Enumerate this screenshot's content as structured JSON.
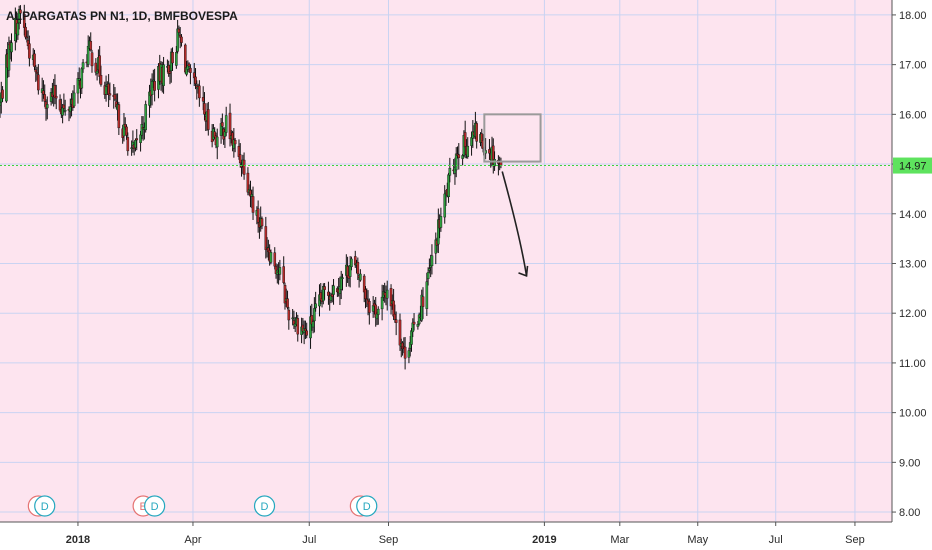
{
  "chart_data": {
    "type": "candlestick",
    "title": "ALPARGATAS PN N1, 1D, BMFBOVESPA",
    "colors": {
      "background": "#fde4ef",
      "up": "#2e9e3e",
      "down": "#b32a2a",
      "wick": "#111111",
      "grid": "#c9d3f2",
      "current_price_line": "#3cd43c",
      "current_price_tag": "#5ee35e",
      "annotation": "#222222",
      "box": "#9a9a9a",
      "earnings_badge": "#e57373",
      "dividend_badge": "#26a8bf"
    },
    "y_axis": {
      "range": [
        7.8,
        18.3
      ],
      "ticks": [
        "8.00",
        "9.00",
        "10.00",
        "11.00",
        "12.00",
        "13.00",
        "14.00",
        "15.00",
        "16.00",
        "17.00",
        "18.00"
      ]
    },
    "x_axis": {
      "date_range": [
        "2017-11-01",
        "2019-09-30"
      ],
      "ticks": [
        {
          "label": "2018",
          "date": "2018-01-01",
          "bold": true
        },
        {
          "label": "Apr",
          "date": "2018-04-01",
          "bold": false
        },
        {
          "label": "Jul",
          "date": "2018-07-01",
          "bold": false
        },
        {
          "label": "Sep",
          "date": "2018-09-01",
          "bold": false
        },
        {
          "label": "2019",
          "date": "2019-01-01",
          "bold": true
        },
        {
          "label": "Mar",
          "date": "2019-03-01",
          "bold": false
        },
        {
          "label": "May",
          "date": "2019-05-01",
          "bold": false
        },
        {
          "label": "Jul",
          "date": "2019-07-01",
          "bold": false
        },
        {
          "label": "Sep",
          "date": "2019-09-01",
          "bold": false
        }
      ]
    },
    "price_path": {
      "start_date": "2017-11-01",
      "end_date": "2018-11-28",
      "anchors": [
        [
          "2017-11-01",
          16.2
        ],
        [
          "2017-11-10",
          17.6
        ],
        [
          "2017-11-17",
          18.0
        ],
        [
          "2017-11-24",
          17.3
        ],
        [
          "2017-12-01",
          16.6
        ],
        [
          "2017-12-08",
          16.3
        ],
        [
          "2017-12-15",
          16.4
        ],
        [
          "2017-12-22",
          16.0
        ],
        [
          "2018-01-02",
          16.6
        ],
        [
          "2018-01-09",
          17.3
        ],
        [
          "2018-01-16",
          17.0
        ],
        [
          "2018-01-23",
          16.5
        ],
        [
          "2018-02-01",
          16.0
        ],
        [
          "2018-02-07",
          15.6
        ],
        [
          "2018-02-14",
          15.2
        ],
        [
          "2018-02-21",
          15.8
        ],
        [
          "2018-02-28",
          16.6
        ],
        [
          "2018-03-07",
          16.8
        ],
        [
          "2018-03-14",
          17.0
        ],
        [
          "2018-03-21",
          17.6
        ],
        [
          "2018-03-28",
          16.8
        ],
        [
          "2018-04-06",
          16.3
        ],
        [
          "2018-04-13",
          15.8
        ],
        [
          "2018-04-20",
          15.5
        ],
        [
          "2018-04-27",
          15.8
        ],
        [
          "2018-05-04",
          15.3
        ],
        [
          "2018-05-11",
          15.0
        ],
        [
          "2018-05-18",
          14.2
        ],
        [
          "2018-05-25",
          13.7
        ],
        [
          "2018-06-01",
          13.2
        ],
        [
          "2018-06-08",
          12.8
        ],
        [
          "2018-06-15",
          12.0
        ],
        [
          "2018-06-22",
          11.8
        ],
        [
          "2018-06-29",
          11.6
        ],
        [
          "2018-07-06",
          12.0
        ],
        [
          "2018-07-13",
          12.4
        ],
        [
          "2018-07-20",
          12.5
        ],
        [
          "2018-07-27",
          12.7
        ],
        [
          "2018-08-03",
          13.0
        ],
        [
          "2018-08-10",
          12.7
        ],
        [
          "2018-08-17",
          12.2
        ],
        [
          "2018-08-24",
          12.0
        ],
        [
          "2018-08-31",
          12.5
        ],
        [
          "2018-09-07",
          11.9
        ],
        [
          "2018-09-13",
          11.2
        ],
        [
          "2018-09-20",
          11.6
        ],
        [
          "2018-09-27",
          12.2
        ],
        [
          "2018-10-04",
          12.9
        ],
        [
          "2018-10-11",
          13.8
        ],
        [
          "2018-10-18",
          14.6
        ],
        [
          "2018-10-25",
          15.3
        ],
        [
          "2018-11-01",
          15.4
        ],
        [
          "2018-11-08",
          15.6
        ],
        [
          "2018-11-15",
          15.4
        ],
        [
          "2018-11-22",
          15.2
        ],
        [
          "2018-11-28",
          14.97
        ]
      ]
    },
    "current_price": {
      "value": 14.97,
      "label": "14.97"
    },
    "annotations": {
      "box": {
        "date_start": "2018-11-15",
        "date_end": "2018-12-29",
        "price_low": 15.05,
        "price_high": 16.0
      },
      "arrow": {
        "points": [
          [
            "2018-11-29",
            14.85
          ],
          [
            "2018-12-07",
            14.1
          ],
          [
            "2018-12-14",
            13.4
          ],
          [
            "2018-12-18",
            12.75
          ]
        ]
      }
    },
    "events": [
      {
        "type": "E",
        "date": "2017-12-01"
      },
      {
        "type": "D",
        "date": "2017-12-06"
      },
      {
        "type": "E",
        "date": "2018-02-21"
      },
      {
        "type": "D",
        "date": "2018-03-02"
      },
      {
        "type": "D",
        "date": "2018-05-27"
      },
      {
        "type": "E",
        "date": "2018-08-10"
      },
      {
        "type": "D",
        "date": "2018-08-15"
      }
    ],
    "grid": true,
    "legend": "none"
  }
}
